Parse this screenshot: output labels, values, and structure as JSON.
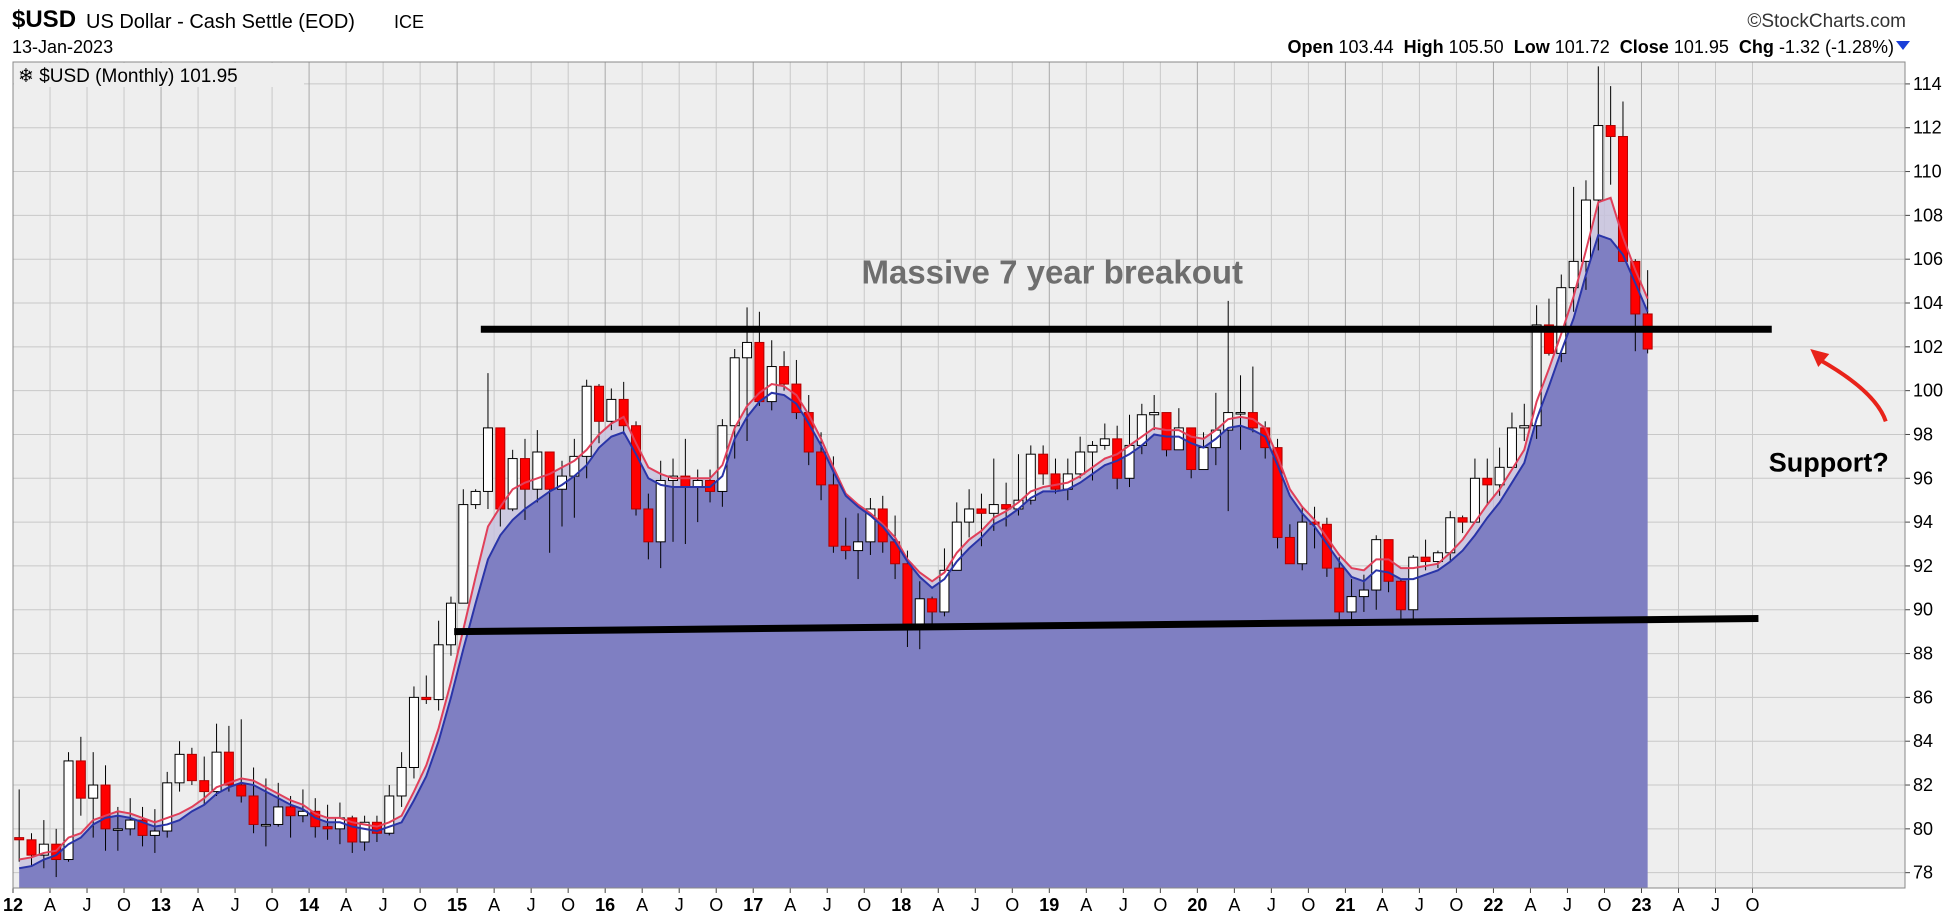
{
  "header": {
    "symbol": "$USD",
    "description": "US Dollar - Cash Settle (EOD)",
    "exchange": "ICE",
    "date": "13-Jan-2023",
    "brand": "©StockCharts.com",
    "open_label": "Open",
    "open": "103.44",
    "high_label": "High",
    "high": "105.50",
    "low_label": "Low",
    "low": "101.72",
    "close_label": "Close",
    "close": "101.95",
    "chg_label": "Chg",
    "chg": "-1.32 (-1.28%)"
  },
  "legend": "$USD (Monthly) 101.95",
  "colors": {
    "up": "#ffffff",
    "down": "#ff0000",
    "wick": "#000000",
    "area": "#7f7fc2",
    "ma_fast": "#e0405a",
    "ma_slow": "#2a35a8",
    "grid": "#c8c8c8",
    "background": "#eeeeee"
  },
  "chart_data": {
    "type": "candlestick",
    "ylim": [
      77.3,
      115
    ],
    "yticks": [
      78,
      80,
      82,
      84,
      86,
      88,
      90,
      92,
      94,
      96,
      98,
      100,
      102,
      104,
      106,
      108,
      110,
      112,
      114
    ],
    "xlim": [
      2012.0,
      2024.78
    ],
    "xticks": [
      {
        "label": "12",
        "year": true
      },
      {
        "label": "A"
      },
      {
        "label": "J"
      },
      {
        "label": "O"
      },
      {
        "label": "13",
        "year": true
      },
      {
        "label": "A"
      },
      {
        "label": "J"
      },
      {
        "label": "O"
      },
      {
        "label": "14",
        "year": true
      },
      {
        "label": "A"
      },
      {
        "label": "J"
      },
      {
        "label": "O"
      },
      {
        "label": "15",
        "year": true
      },
      {
        "label": "A"
      },
      {
        "label": "J"
      },
      {
        "label": "O"
      },
      {
        "label": "16",
        "year": true
      },
      {
        "label": "A"
      },
      {
        "label": "J"
      },
      {
        "label": "O"
      },
      {
        "label": "17",
        "year": true
      },
      {
        "label": "A"
      },
      {
        "label": "J"
      },
      {
        "label": "O"
      },
      {
        "label": "18",
        "year": true
      },
      {
        "label": "A"
      },
      {
        "label": "J"
      },
      {
        "label": "O"
      },
      {
        "label": "19",
        "year": true
      },
      {
        "label": "A"
      },
      {
        "label": "J"
      },
      {
        "label": "O"
      },
      {
        "label": "20",
        "year": true
      },
      {
        "label": "A"
      },
      {
        "label": "J"
      },
      {
        "label": "O"
      },
      {
        "label": "21",
        "year": true
      },
      {
        "label": "A"
      },
      {
        "label": "J"
      },
      {
        "label": "O"
      },
      {
        "label": "22",
        "year": true
      },
      {
        "label": "A"
      },
      {
        "label": "J"
      },
      {
        "label": "O"
      },
      {
        "label": "23",
        "year": true
      },
      {
        "label": "A"
      },
      {
        "label": "J"
      },
      {
        "label": "O"
      }
    ],
    "close": [
      79.5,
      78.8,
      79.3,
      78.6,
      83.1,
      81.4,
      82.0,
      80.0,
      80.0,
      80.4,
      79.7,
      79.9,
      82.1,
      83.4,
      82.2,
      81.7,
      83.5,
      82.0,
      81.5,
      80.2,
      80.2,
      81.0,
      80.6,
      80.8,
      80.1,
      80.0,
      80.5,
      79.4,
      80.3,
      79.8,
      81.5,
      82.8,
      86.0,
      85.9,
      88.4,
      90.3,
      94.8,
      95.4,
      98.3,
      94.6,
      96.9,
      95.5,
      97.2,
      95.5,
      96.1,
      97.0,
      100.2,
      98.6,
      99.6,
      98.4,
      94.6,
      93.1,
      95.9,
      96.1,
      95.6,
      95.9,
      95.4,
      98.4,
      101.5,
      102.2,
      99.5,
      101.1,
      100.3,
      99.0,
      97.2,
      95.7,
      92.9,
      92.7,
      93.1,
      94.6,
      93.1,
      92.1,
      89.2,
      90.5,
      89.9,
      91.8,
      94.0,
      94.6,
      94.4,
      94.8,
      94.6,
      95.0,
      97.1,
      96.2,
      95.5,
      96.2,
      97.2,
      97.5,
      97.8,
      96.0,
      97.5,
      98.9,
      99.0,
      97.3,
      98.3,
      96.4,
      97.4,
      98.2,
      99.0,
      99.0,
      98.3,
      97.4,
      93.3,
      92.1,
      94.0,
      93.9,
      91.9,
      89.9,
      90.6,
      90.9,
      93.2,
      91.3,
      90.0,
      92.4,
      92.2,
      92.6,
      94.2,
      94.0,
      96.0,
      95.7,
      96.5,
      98.3,
      98.4,
      103.0,
      101.7,
      104.7,
      105.9,
      108.7,
      112.1,
      111.6,
      105.9,
      103.5,
      101.9
    ],
    "high": [
      81.8,
      79.8,
      80.4,
      80.0,
      83.5,
      84.2,
      83.5,
      82.9,
      81.0,
      81.4,
      81.0,
      80.9,
      82.6,
      84.0,
      83.7,
      83.3,
      84.8,
      84.7,
      85.0,
      82.8,
      82.3,
      82.1,
      81.5,
      81.8,
      81.4,
      81.1,
      81.2,
      80.6,
      80.6,
      80.6,
      82.0,
      83.5,
      86.5,
      87.0,
      89.5,
      90.6,
      95.5,
      95.5,
      100.8,
      98.3,
      97.3,
      97.8,
      98.2,
      97.0,
      96.8,
      97.8,
      100.5,
      100.3,
      100.1,
      100.4,
      98.6,
      95.3,
      96.8,
      96.9,
      97.8,
      96.4,
      96.4,
      98.7,
      101.9,
      103.8,
      103.6,
      102.3,
      101.8,
      101.4,
      99.8,
      98.1,
      97.0,
      94.2,
      94.4,
      95.1,
      95.2,
      94.3,
      92.7,
      91.3,
      90.6,
      92.8,
      94.9,
      95.5,
      95.3,
      96.9,
      95.8,
      97.1,
      97.5,
      97.5,
      96.9,
      96.9,
      97.9,
      97.7,
      98.5,
      98.4,
      98.9,
      99.4,
      99.8,
      98.7,
      99.2,
      98.3,
      98.1,
      99.9,
      104.1,
      100.7,
      101.1,
      98.6,
      97.8,
      93.9,
      94.7,
      94.7,
      94.2,
      92.4,
      91.4,
      91.6,
      93.4,
      93.0,
      91.4,
      92.5,
      93.2,
      92.7,
      94.5,
      94.3,
      96.9,
      96.9,
      97.4,
      99.0,
      99.4,
      103.9,
      104.2,
      105.3,
      109.3,
      109.6,
      114.8,
      113.9,
      113.2,
      106.0,
      105.5
    ],
    "low": [
      78.5,
      78.3,
      78.2,
      77.8,
      78.5,
      80.6,
      79.6,
      79.0,
      79.0,
      79.7,
      79.2,
      78.9,
      79.6,
      81.7,
      82.0,
      81.1,
      81.5,
      81.7,
      81.2,
      79.8,
      79.2,
      80.1,
      79.6,
      80.3,
      79.6,
      79.5,
      79.3,
      78.9,
      79.0,
      79.4,
      79.7,
      81.0,
      82.3,
      85.7,
      85.4,
      87.9,
      90.3,
      94.6,
      94.6,
      93.8,
      94.5,
      94.1,
      94.9,
      92.6,
      93.8,
      94.2,
      96.0,
      97.6,
      98.2,
      98.0,
      94.3,
      92.3,
      91.9,
      93.1,
      93.0,
      94.0,
      94.9,
      94.7,
      96.9,
      97.7,
      99.3,
      99.1,
      100.0,
      98.7,
      96.6,
      95.0,
      92.6,
      92.3,
      91.4,
      92.5,
      92.6,
      91.4,
      88.3,
      88.2,
      89.2,
      89.7,
      91.9,
      93.3,
      92.9,
      93.6,
      93.8,
      94.3,
      94.8,
      95.7,
      95.3,
      95.0,
      96.0,
      95.9,
      97.3,
      95.5,
      95.6,
      97.1,
      98.2,
      97.0,
      97.3,
      96.0,
      96.4,
      96.6,
      94.5,
      97.3,
      98.1,
      96.9,
      92.8,
      92.1,
      91.8,
      92.8,
      91.5,
      89.5,
      89.3,
      89.9,
      90.0,
      90.8,
      89.6,
      89.5,
      91.8,
      91.9,
      92.2,
      93.5,
      94.4,
      94.8,
      95.2,
      96.6,
      97.7,
      97.8,
      101.6,
      101.3,
      103.6,
      104.6,
      106.4,
      109.4,
      107.3,
      101.8,
      101.7
    ],
    "ma_fast": [
      78.6,
      78.7,
      78.9,
      79.0,
      79.6,
      79.8,
      80.4,
      80.6,
      80.8,
      80.7,
      80.5,
      80.3,
      80.5,
      80.7,
      81.0,
      81.4,
      81.9,
      82.1,
      82.3,
      82.2,
      81.9,
      81.6,
      81.3,
      81.1,
      80.7,
      80.5,
      80.5,
      80.3,
      80.2,
      80.1,
      80.3,
      80.6,
      81.7,
      82.9,
      84.6,
      86.7,
      89.1,
      91.5,
      93.8,
      94.7,
      95.5,
      95.8,
      96.0,
      96.2,
      96.5,
      96.8,
      97.3,
      98.0,
      98.5,
      98.8,
      97.6,
      96.5,
      96.2,
      96.0,
      96.0,
      96.0,
      96.0,
      96.6,
      98.3,
      99.3,
      99.9,
      100.3,
      100.2,
      99.8,
      98.9,
      97.8,
      96.5,
      95.3,
      94.8,
      94.4,
      93.9,
      93.3,
      92.3,
      91.7,
      91.3,
      91.7,
      92.6,
      93.2,
      93.6,
      94.2,
      94.5,
      94.9,
      95.4,
      95.6,
      95.7,
      95.8,
      96.1,
      96.5,
      96.9,
      97.1,
      97.5,
      97.9,
      98.3,
      98.2,
      98.2,
      97.9,
      97.8,
      98.2,
      98.7,
      98.8,
      98.7,
      98.3,
      97.0,
      95.5,
      94.7,
      94.1,
      93.3,
      92.5,
      91.9,
      91.8,
      92.3,
      92.3,
      91.9,
      91.9,
      92.0,
      92.1,
      92.6,
      93.2,
      94.0,
      94.8,
      95.5,
      96.4,
      97.3,
      99.5,
      101.0,
      102.6,
      104.3,
      106.4,
      108.6,
      108.8,
      107.0,
      105.5,
      104.2
    ],
    "ma_slow": [
      78.2,
      78.3,
      78.6,
      78.8,
      79.3,
      79.6,
      80.2,
      80.5,
      80.6,
      80.5,
      80.3,
      80.1,
      80.2,
      80.4,
      80.8,
      81.1,
      81.6,
      81.9,
      82.1,
      82.0,
      81.7,
      81.4,
      81.1,
      80.9,
      80.5,
      80.3,
      80.3,
      80.1,
      80.0,
      79.9,
      80.1,
      80.3,
      81.3,
      82.4,
      84.0,
      86.0,
      88.2,
      90.3,
      92.3,
      93.4,
      94.1,
      94.6,
      95.0,
      95.4,
      95.7,
      96.1,
      96.6,
      97.4,
      97.9,
      98.1,
      97.1,
      96.0,
      95.7,
      95.6,
      95.6,
      95.6,
      95.6,
      96.1,
      97.8,
      98.8,
      99.5,
      99.9,
      99.8,
      99.4,
      98.5,
      97.5,
      96.3,
      95.2,
      94.7,
      94.3,
      93.8,
      93.1,
      92.2,
      91.5,
      91.0,
      91.4,
      92.2,
      92.8,
      93.3,
      93.9,
      94.2,
      94.6,
      95.1,
      95.4,
      95.4,
      95.5,
      95.8,
      96.2,
      96.6,
      96.8,
      97.1,
      97.5,
      98.0,
      97.9,
      97.9,
      97.6,
      97.4,
      97.8,
      98.3,
      98.4,
      98.2,
      97.9,
      96.6,
      95.2,
      94.4,
      93.8,
      93.0,
      92.2,
      91.5,
      91.3,
      91.8,
      91.7,
      91.4,
      91.4,
      91.6,
      91.8,
      92.2,
      92.7,
      93.4,
      94.2,
      94.9,
      95.8,
      96.7,
      98.7,
      100.2,
      101.8,
      103.3,
      105.3,
      107.1,
      106.9,
      106.2,
      104.9,
      103.6
    ],
    "lines": [
      {
        "x1": 2015.16,
        "y1": 102.8,
        "x2": 2023.88,
        "y2": 102.8
      },
      {
        "x1": 2014.98,
        "y1": 89.0,
        "x2": 2023.79,
        "y2": 89.6
      }
    ],
    "annotations": [
      {
        "text": "Massive 7 year breakout",
        "x": 2019.02,
        "y": 104.9
      },
      {
        "text": "Support?",
        "x": 2024.67,
        "y": 96.3
      }
    ],
    "arrow": {
      "x1": 2024.65,
      "y1": 98.6,
      "x2": 2024.14,
      "y2": 101.9
    }
  }
}
